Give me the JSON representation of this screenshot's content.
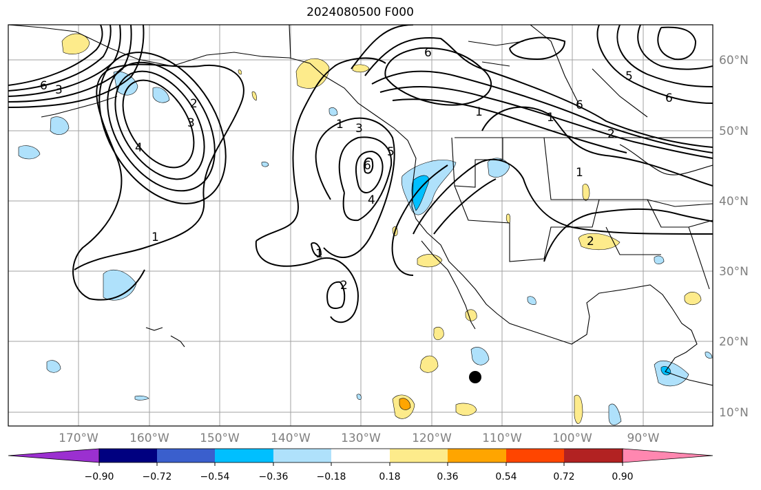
{
  "title": "2024080500 F000",
  "lon_labels": [
    "170°W",
    "160°W",
    "150°W",
    "140°W",
    "130°W",
    "120°W",
    "110°W",
    "100°W",
    "90°W"
  ],
  "lat_labels": [
    "60°N",
    "50°N",
    "40°N",
    "30°N",
    "20°N",
    "10°N"
  ],
  "colorbar": {
    "ticks": [
      "−0.90",
      "−0.72",
      "−0.54",
      "−0.36",
      "−0.18",
      "0.18",
      "0.36",
      "0.54",
      "0.72",
      "0.90"
    ],
    "colors": [
      "#9b30d0",
      "#000080",
      "#3a5fcd",
      "#00bfff",
      "#afe1fb",
      "#ffffff",
      "#fdeb8b",
      "#ffa500",
      "#ff4500",
      "#b22222",
      "#ff87b0"
    ]
  },
  "contour_labels": [
    "6",
    "3",
    "2",
    "3",
    "4",
    "1",
    "1",
    "3",
    "4",
    "5",
    "6",
    "6",
    "2",
    "1",
    "1",
    "2",
    "6",
    "5",
    "1",
    "2",
    "6",
    "1"
  ],
  "colors": {
    "contour": "#000000",
    "grid": "#a0a0a0",
    "coast": "#000000"
  }
}
